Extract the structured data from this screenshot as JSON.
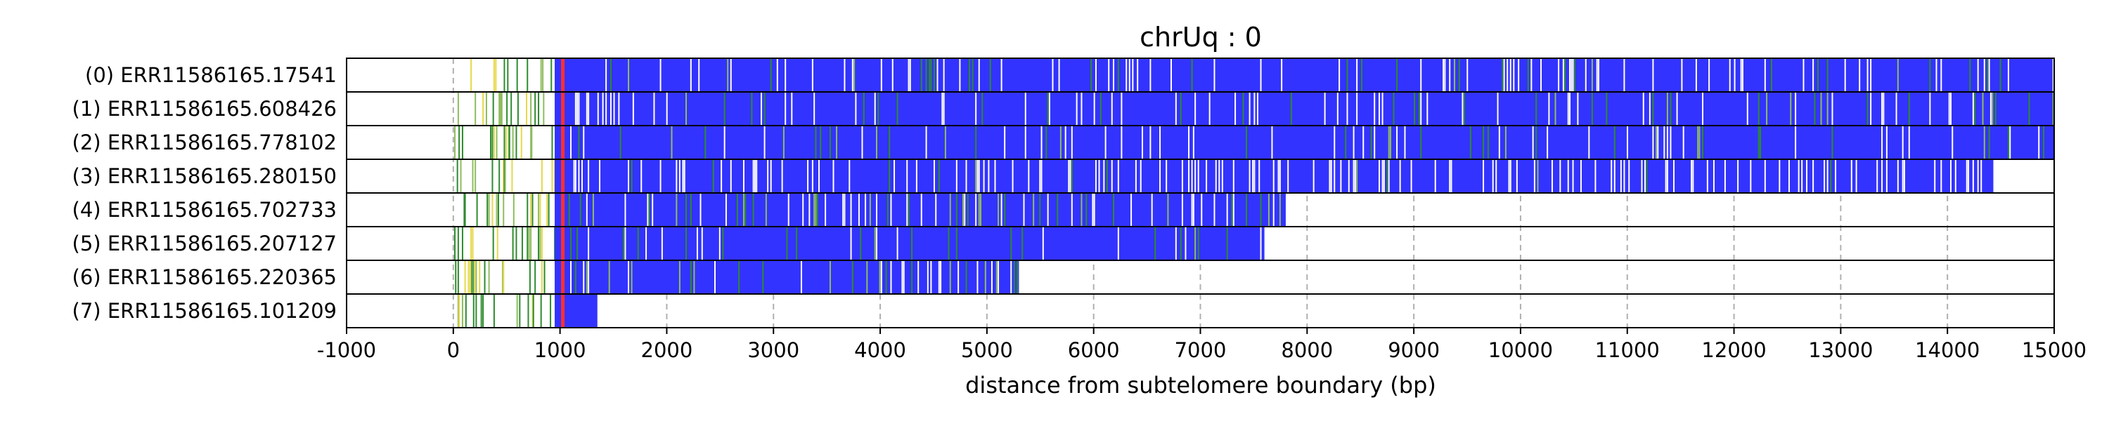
{
  "chart_data": {
    "type": "heatmap",
    "title": "chrUq : 0",
    "xlabel": "distance from subtelomere boundary (bp)",
    "ylabel": "",
    "xlim": [
      -1000,
      15000
    ],
    "xticks": [
      "-1000",
      "0",
      "1000",
      "2000",
      "3000",
      "4000",
      "5000",
      "6000",
      "7000",
      "8000",
      "9000",
      "10000",
      "11000",
      "12000",
      "13000",
      "14000",
      "15000"
    ],
    "grid": "vertical dashed",
    "subtelomere_start": 0,
    "repeat_start": 1050,
    "colors": {
      "repeat": "#3333ff",
      "variant_green": "#2e8b2e",
      "variant_light": "#8fbc5f",
      "variant_yellow": "#e6d84a",
      "variant_red": "#ff3030",
      "gap": "#ffffff",
      "frame": "#000000"
    },
    "reads": [
      {
        "label": "(0) ERR11586165.17541",
        "end": 15000,
        "gap_density": 0.35,
        "green_density": 0.18
      },
      {
        "label": "(1) ERR11586165.608426",
        "end": 15000,
        "gap_density": 0.28,
        "green_density": 0.22
      },
      {
        "label": "(2) ERR11586165.778102",
        "end": 15000,
        "gap_density": 0.25,
        "green_density": 0.2
      },
      {
        "label": "(3) ERR11586165.280150",
        "end": 14430,
        "gap_density": 0.7,
        "green_density": 0.05
      },
      {
        "label": "(4) ERR11586165.702733",
        "end": 7800,
        "gap_density": 0.3,
        "green_density": 0.45
      },
      {
        "label": "(5) ERR11586165.207127",
        "end": 7600,
        "gap_density": 0.15,
        "green_density": 0.12
      },
      {
        "label": "(6) ERR11586165.220365",
        "end": 5300,
        "gap_density": 0.35,
        "green_density": 0.4
      },
      {
        "label": "(7) ERR11586165.101209",
        "end": 1350,
        "gap_density": 0.3,
        "green_density": 0.1
      }
    ]
  }
}
